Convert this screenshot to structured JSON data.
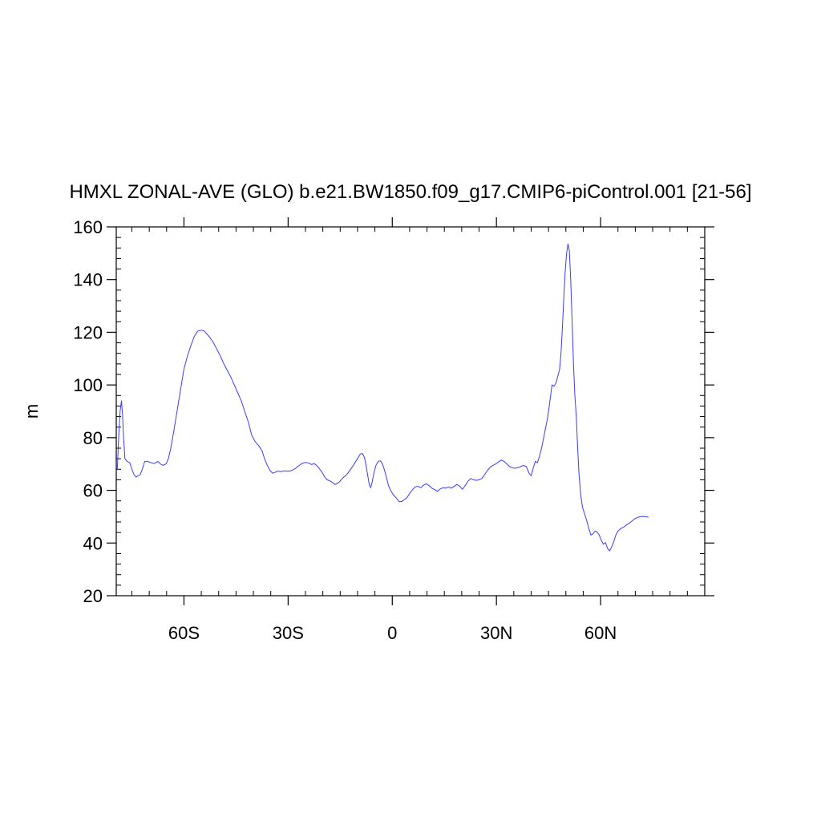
{
  "chart_data": {
    "type": "line",
    "title": "HMXL ZONAL-AVE (GLO) b.e21.BW1850.f09_g17.CMIP6-piControl.001 [21-56]",
    "xlabel": "",
    "ylabel": "m",
    "xlim": [
      -79.5,
      90
    ],
    "ylim": [
      20,
      160
    ],
    "grid": false,
    "y_major_ticks": [
      20,
      40,
      60,
      80,
      100,
      120,
      140,
      160
    ],
    "y_minor_step": 4,
    "x_major_ticks": [
      {
        "value": -60,
        "label": "60S"
      },
      {
        "value": -30,
        "label": "30S"
      },
      {
        "value": 0,
        "label": "0"
      },
      {
        "value": 30,
        "label": "30N"
      },
      {
        "value": 60,
        "label": "60N"
      }
    ],
    "x_minor_step": 5,
    "line_color": "#3b3bff",
    "series": [
      {
        "points": [
          [
            -79.2,
            68
          ],
          [
            -78.8,
            80
          ],
          [
            -78.4,
            90
          ],
          [
            -78.0,
            94
          ],
          [
            -77.7,
            89
          ],
          [
            -77.4,
            80
          ],
          [
            -77.0,
            72
          ],
          [
            -76.4,
            71
          ],
          [
            -75.6,
            70.5
          ],
          [
            -75.0,
            68
          ],
          [
            -74.4,
            66
          ],
          [
            -73.8,
            65
          ],
          [
            -73.2,
            65.5
          ],
          [
            -72.6,
            66
          ],
          [
            -72.0,
            68
          ],
          [
            -71.3,
            71
          ],
          [
            -70.5,
            71
          ],
          [
            -69.5,
            70.5
          ],
          [
            -68.5,
            70.2
          ],
          [
            -67.5,
            71
          ],
          [
            -66.8,
            70
          ],
          [
            -66.0,
            69.5
          ],
          [
            -65.2,
            70
          ],
          [
            -64.5,
            72
          ],
          [
            -63.8,
            76
          ],
          [
            -63.0,
            82
          ],
          [
            -62.0,
            90
          ],
          [
            -61.0,
            98
          ],
          [
            -60.0,
            106
          ],
          [
            -59.0,
            111
          ],
          [
            -58.0,
            115
          ],
          [
            -57.0,
            118.5
          ],
          [
            -56.0,
            120.5
          ],
          [
            -55.0,
            120.8
          ],
          [
            -54.2,
            120.5
          ],
          [
            -53.5,
            119.5
          ],
          [
            -52.5,
            118
          ],
          [
            -51.5,
            116
          ],
          [
            -50.5,
            113.5
          ],
          [
            -49.5,
            111
          ],
          [
            -48.5,
            108
          ],
          [
            -47.5,
            105.5
          ],
          [
            -46.5,
            103
          ],
          [
            -45.5,
            100
          ],
          [
            -44.5,
            97
          ],
          [
            -43.5,
            94
          ],
          [
            -42.5,
            90
          ],
          [
            -41.5,
            86
          ],
          [
            -40.5,
            81
          ],
          [
            -39.5,
            78.5
          ],
          [
            -38.5,
            77
          ],
          [
            -37.5,
            75
          ],
          [
            -36.8,
            72
          ],
          [
            -36.0,
            69.5
          ],
          [
            -35.2,
            67.5
          ],
          [
            -34.5,
            66.5
          ],
          [
            -33.8,
            66.8
          ],
          [
            -33.0,
            67.3
          ],
          [
            -32.0,
            67.1
          ],
          [
            -31.0,
            67.4
          ],
          [
            -30.0,
            67.2
          ],
          [
            -29.0,
            67.5
          ],
          [
            -28.0,
            68.2
          ],
          [
            -27.0,
            69.3
          ],
          [
            -26.0,
            70.2
          ],
          [
            -25.0,
            70.6
          ],
          [
            -24.0,
            70.3
          ],
          [
            -23.2,
            69.8
          ],
          [
            -22.5,
            70.2
          ],
          [
            -21.8,
            69.5
          ],
          [
            -21.0,
            68.2
          ],
          [
            -20.2,
            66.8
          ],
          [
            -19.5,
            65.2
          ],
          [
            -18.8,
            64
          ],
          [
            -18.0,
            63.6
          ],
          [
            -17.2,
            63
          ],
          [
            -16.5,
            62.2
          ],
          [
            -15.8,
            62.6
          ],
          [
            -15.0,
            63.5
          ],
          [
            -14.2,
            64.8
          ],
          [
            -13.5,
            65.5
          ],
          [
            -12.8,
            66.5
          ],
          [
            -12.0,
            68
          ],
          [
            -11.2,
            69.5
          ],
          [
            -10.5,
            71
          ],
          [
            -9.8,
            72.5
          ],
          [
            -9.2,
            73.8
          ],
          [
            -8.6,
            74
          ],
          [
            -8.0,
            72.5
          ],
          [
            -7.5,
            69
          ],
          [
            -7.0,
            65
          ],
          [
            -6.6,
            62
          ],
          [
            -6.2,
            61
          ],
          [
            -5.8,
            63
          ],
          [
            -5.3,
            66.5
          ],
          [
            -4.7,
            69.5
          ],
          [
            -4.0,
            71
          ],
          [
            -3.4,
            71.2
          ],
          [
            -2.8,
            70
          ],
          [
            -2.2,
            67.5
          ],
          [
            -1.6,
            64.5
          ],
          [
            -1.0,
            61.5
          ],
          [
            -0.3,
            59.5
          ],
          [
            0.5,
            58
          ],
          [
            1.2,
            57
          ],
          [
            2.0,
            55.7
          ],
          [
            2.8,
            55.8
          ],
          [
            3.5,
            56.5
          ],
          [
            4.2,
            57.2
          ],
          [
            5.0,
            58.8
          ],
          [
            5.8,
            60.2
          ],
          [
            6.6,
            61.3
          ],
          [
            7.4,
            61.5
          ],
          [
            8.2,
            61
          ],
          [
            9.0,
            62
          ],
          [
            9.8,
            62.5
          ],
          [
            10.6,
            61.8
          ],
          [
            11.4,
            60.8
          ],
          [
            12.2,
            60.3
          ],
          [
            13.0,
            59.6
          ],
          [
            13.8,
            60.5
          ],
          [
            14.6,
            61
          ],
          [
            15.4,
            60.8
          ],
          [
            16.2,
            61.3
          ],
          [
            17.0,
            60.8
          ],
          [
            17.8,
            61.5
          ],
          [
            18.6,
            62.2
          ],
          [
            19.4,
            61.6
          ],
          [
            20.2,
            60.4
          ],
          [
            21.0,
            61.8
          ],
          [
            21.8,
            63.5
          ],
          [
            22.6,
            64.5
          ],
          [
            23.4,
            64
          ],
          [
            24.2,
            63.8
          ],
          [
            25.0,
            64
          ],
          [
            25.8,
            64.5
          ],
          [
            26.6,
            66
          ],
          [
            27.4,
            67.5
          ],
          [
            28.2,
            68.8
          ],
          [
            29.0,
            69.5
          ],
          [
            29.8,
            70
          ],
          [
            30.6,
            70.8
          ],
          [
            31.4,
            71.5
          ],
          [
            32.2,
            71
          ],
          [
            33.0,
            70
          ],
          [
            33.8,
            69
          ],
          [
            34.6,
            68.5
          ],
          [
            35.4,
            68.4
          ],
          [
            36.2,
            68.6
          ],
          [
            37.0,
            69
          ],
          [
            37.8,
            69.5
          ],
          [
            38.6,
            69
          ],
          [
            39.4,
            66.5
          ],
          [
            40.0,
            65.5
          ],
          [
            40.6,
            68.5
          ],
          [
            41.2,
            71
          ],
          [
            41.8,
            70.5
          ],
          [
            42.4,
            73
          ],
          [
            43.0,
            76
          ],
          [
            43.6,
            80
          ],
          [
            44.2,
            84
          ],
          [
            44.8,
            88
          ],
          [
            45.4,
            94
          ],
          [
            46.0,
            100
          ],
          [
            46.6,
            99.5
          ],
          [
            47.2,
            101
          ],
          [
            47.8,
            104
          ],
          [
            48.2,
            106
          ],
          [
            48.6,
            112
          ],
          [
            49.0,
            122
          ],
          [
            49.4,
            133
          ],
          [
            49.8,
            143
          ],
          [
            50.2,
            150
          ],
          [
            50.6,
            153.5
          ],
          [
            51.0,
            151
          ],
          [
            51.4,
            140
          ],
          [
            51.8,
            124
          ],
          [
            52.2,
            108
          ],
          [
            52.6,
            96
          ],
          [
            53.0,
            88
          ],
          [
            53.4,
            76
          ],
          [
            53.8,
            66
          ],
          [
            54.3,
            58
          ],
          [
            54.8,
            53.5
          ],
          [
            55.4,
            51
          ],
          [
            56.0,
            48.5
          ],
          [
            56.6,
            45.5
          ],
          [
            57.2,
            43
          ],
          [
            57.8,
            43.5
          ],
          [
            58.4,
            44.5
          ],
          [
            59.0,
            44.2
          ],
          [
            59.6,
            43
          ],
          [
            60.2,
            41
          ],
          [
            60.8,
            39.5
          ],
          [
            61.4,
            40.2
          ],
          [
            62.0,
            38
          ],
          [
            62.6,
            37
          ],
          [
            63.2,
            38.5
          ],
          [
            63.8,
            40.5
          ],
          [
            64.4,
            43
          ],
          [
            65.0,
            44.5
          ],
          [
            65.8,
            45.5
          ],
          [
            66.6,
            46
          ],
          [
            67.4,
            46.8
          ],
          [
            68.2,
            47.5
          ],
          [
            69.0,
            48.3
          ],
          [
            69.8,
            49.2
          ],
          [
            70.6,
            49.7
          ],
          [
            71.4,
            50
          ],
          [
            72.2,
            50.1
          ],
          [
            73.0,
            50
          ],
          [
            73.8,
            49.8
          ]
        ]
      }
    ]
  }
}
